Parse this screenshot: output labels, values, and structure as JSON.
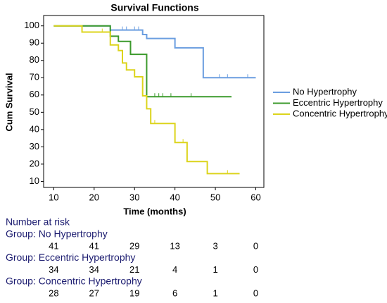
{
  "chart_data": {
    "type": "step",
    "title": "Survival Functions",
    "x_label": "Time (months)",
    "y_label": "Cum Survival",
    "xlim": [
      7.5,
      62
    ],
    "xticks": [
      10,
      20,
      30,
      40,
      50,
      60
    ],
    "ylim": [
      6.5,
      106
    ],
    "yticks": [
      10,
      20,
      30,
      40,
      50,
      60,
      70,
      80,
      90,
      100
    ],
    "grid": false,
    "legend": "right",
    "series": [
      {
        "name": "No Hypertrophy",
        "color": "#6b9ee0",
        "x": [
          10,
          24,
          32,
          33,
          40,
          47,
          60
        ],
        "values": [
          100,
          97.6,
          95,
          92.7,
          87.3,
          70,
          70
        ],
        "censored": [
          27,
          28,
          30,
          31,
          51,
          53,
          58
        ]
      },
      {
        "name": "Eccentric Hypertrophy",
        "color": "#3c9a2c",
        "x": [
          10,
          24,
          26,
          29,
          33,
          54
        ],
        "values": [
          100,
          94,
          91,
          83.5,
          59,
          59
        ],
        "censored": [
          35,
          36,
          37,
          39,
          44
        ]
      },
      {
        "name": "Concentric Hypertrophy",
        "color": "#dcd41c",
        "x": [
          10,
          17,
          24,
          26,
          27,
          28,
          30,
          32,
          33,
          34,
          40,
          43,
          48,
          56
        ],
        "values": [
          100,
          96.4,
          89,
          85.7,
          78.5,
          74.5,
          70.5,
          59.5,
          52,
          43.5,
          32.5,
          21.5,
          14.5,
          14.5
        ],
        "censored": [
          22,
          28,
          35,
          42,
          53
        ]
      }
    ],
    "risk_table": {
      "title": "Number at risk",
      "groups": [
        {
          "label": "Group: No Hypertrophy",
          "values": [
            41,
            41,
            29,
            13,
            3,
            0
          ]
        },
        {
          "label": "Group: Eccentric Hypertrophy",
          "values": [
            34,
            34,
            21,
            4,
            1,
            0
          ]
        },
        {
          "label": "Group: Concentric Hypertrophy",
          "values": [
            28,
            27,
            19,
            6,
            1,
            0
          ]
        }
      ]
    }
  }
}
